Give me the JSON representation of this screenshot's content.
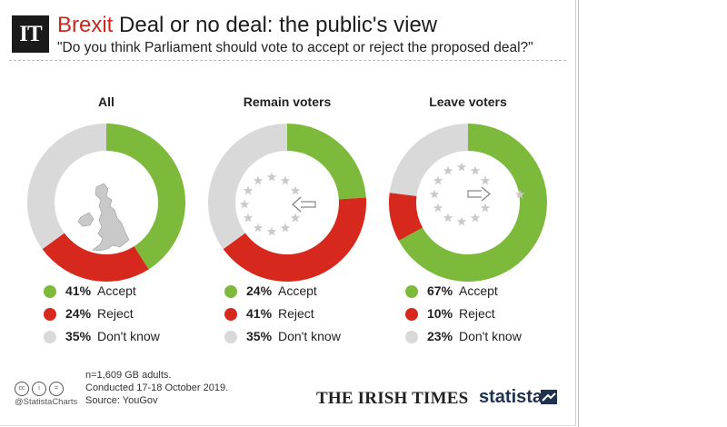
{
  "header": {
    "logo_text": "IT",
    "title_keyword": "Brexit",
    "title_rest": "Deal or no deal: the public's view",
    "subtitle": "\"Do you think Parliament should vote to accept or reject the proposed deal?\""
  },
  "colors": {
    "accept": "#7dba3c",
    "reject": "#d7281d",
    "dont_know": "#d9d9d9",
    "title_accent": "#c8281e"
  },
  "chart_data": [
    {
      "type": "pie",
      "title": "All",
      "center_icon": "uk-map-icon",
      "categories": [
        "Accept",
        "Reject",
        "Don't know"
      ],
      "values": [
        41,
        24,
        35
      ]
    },
    {
      "type": "pie",
      "title": "Remain voters",
      "center_icon": "eu-stars-arrow-in-icon",
      "categories": [
        "Accept",
        "Reject",
        "Don't know"
      ],
      "values": [
        24,
        41,
        35
      ]
    },
    {
      "type": "pie",
      "title": "Leave voters",
      "center_icon": "eu-stars-arrow-out-icon",
      "categories": [
        "Accept",
        "Reject",
        "Don't know"
      ],
      "values": [
        67,
        10,
        23
      ]
    }
  ],
  "panels": [
    {
      "title": "All",
      "legend": [
        {
          "value": "41%",
          "label": "Accept"
        },
        {
          "value": "24%",
          "label": "Reject"
        },
        {
          "value": "35%",
          "label": "Don't know"
        }
      ]
    },
    {
      "title": "Remain voters",
      "legend": [
        {
          "value": "24%",
          "label": "Accept"
        },
        {
          "value": "41%",
          "label": "Reject"
        },
        {
          "value": "35%",
          "label": "Don't know"
        }
      ]
    },
    {
      "title": "Leave voters",
      "legend": [
        {
          "value": "67%",
          "label": "Accept"
        },
        {
          "value": "10%",
          "label": "Reject"
        },
        {
          "value": "23%",
          "label": "Don't know"
        }
      ]
    }
  ],
  "footer": {
    "license_icons": [
      "cc-icon",
      "by-icon",
      "equals-icon"
    ],
    "handle": "@StatistaCharts",
    "note_lines": [
      "n=1,609 GB adults.",
      "Conducted 17-18 October 2019.",
      "Source: YouGov"
    ],
    "publisher": "THE IRISH TIMES",
    "brand": "statista"
  }
}
